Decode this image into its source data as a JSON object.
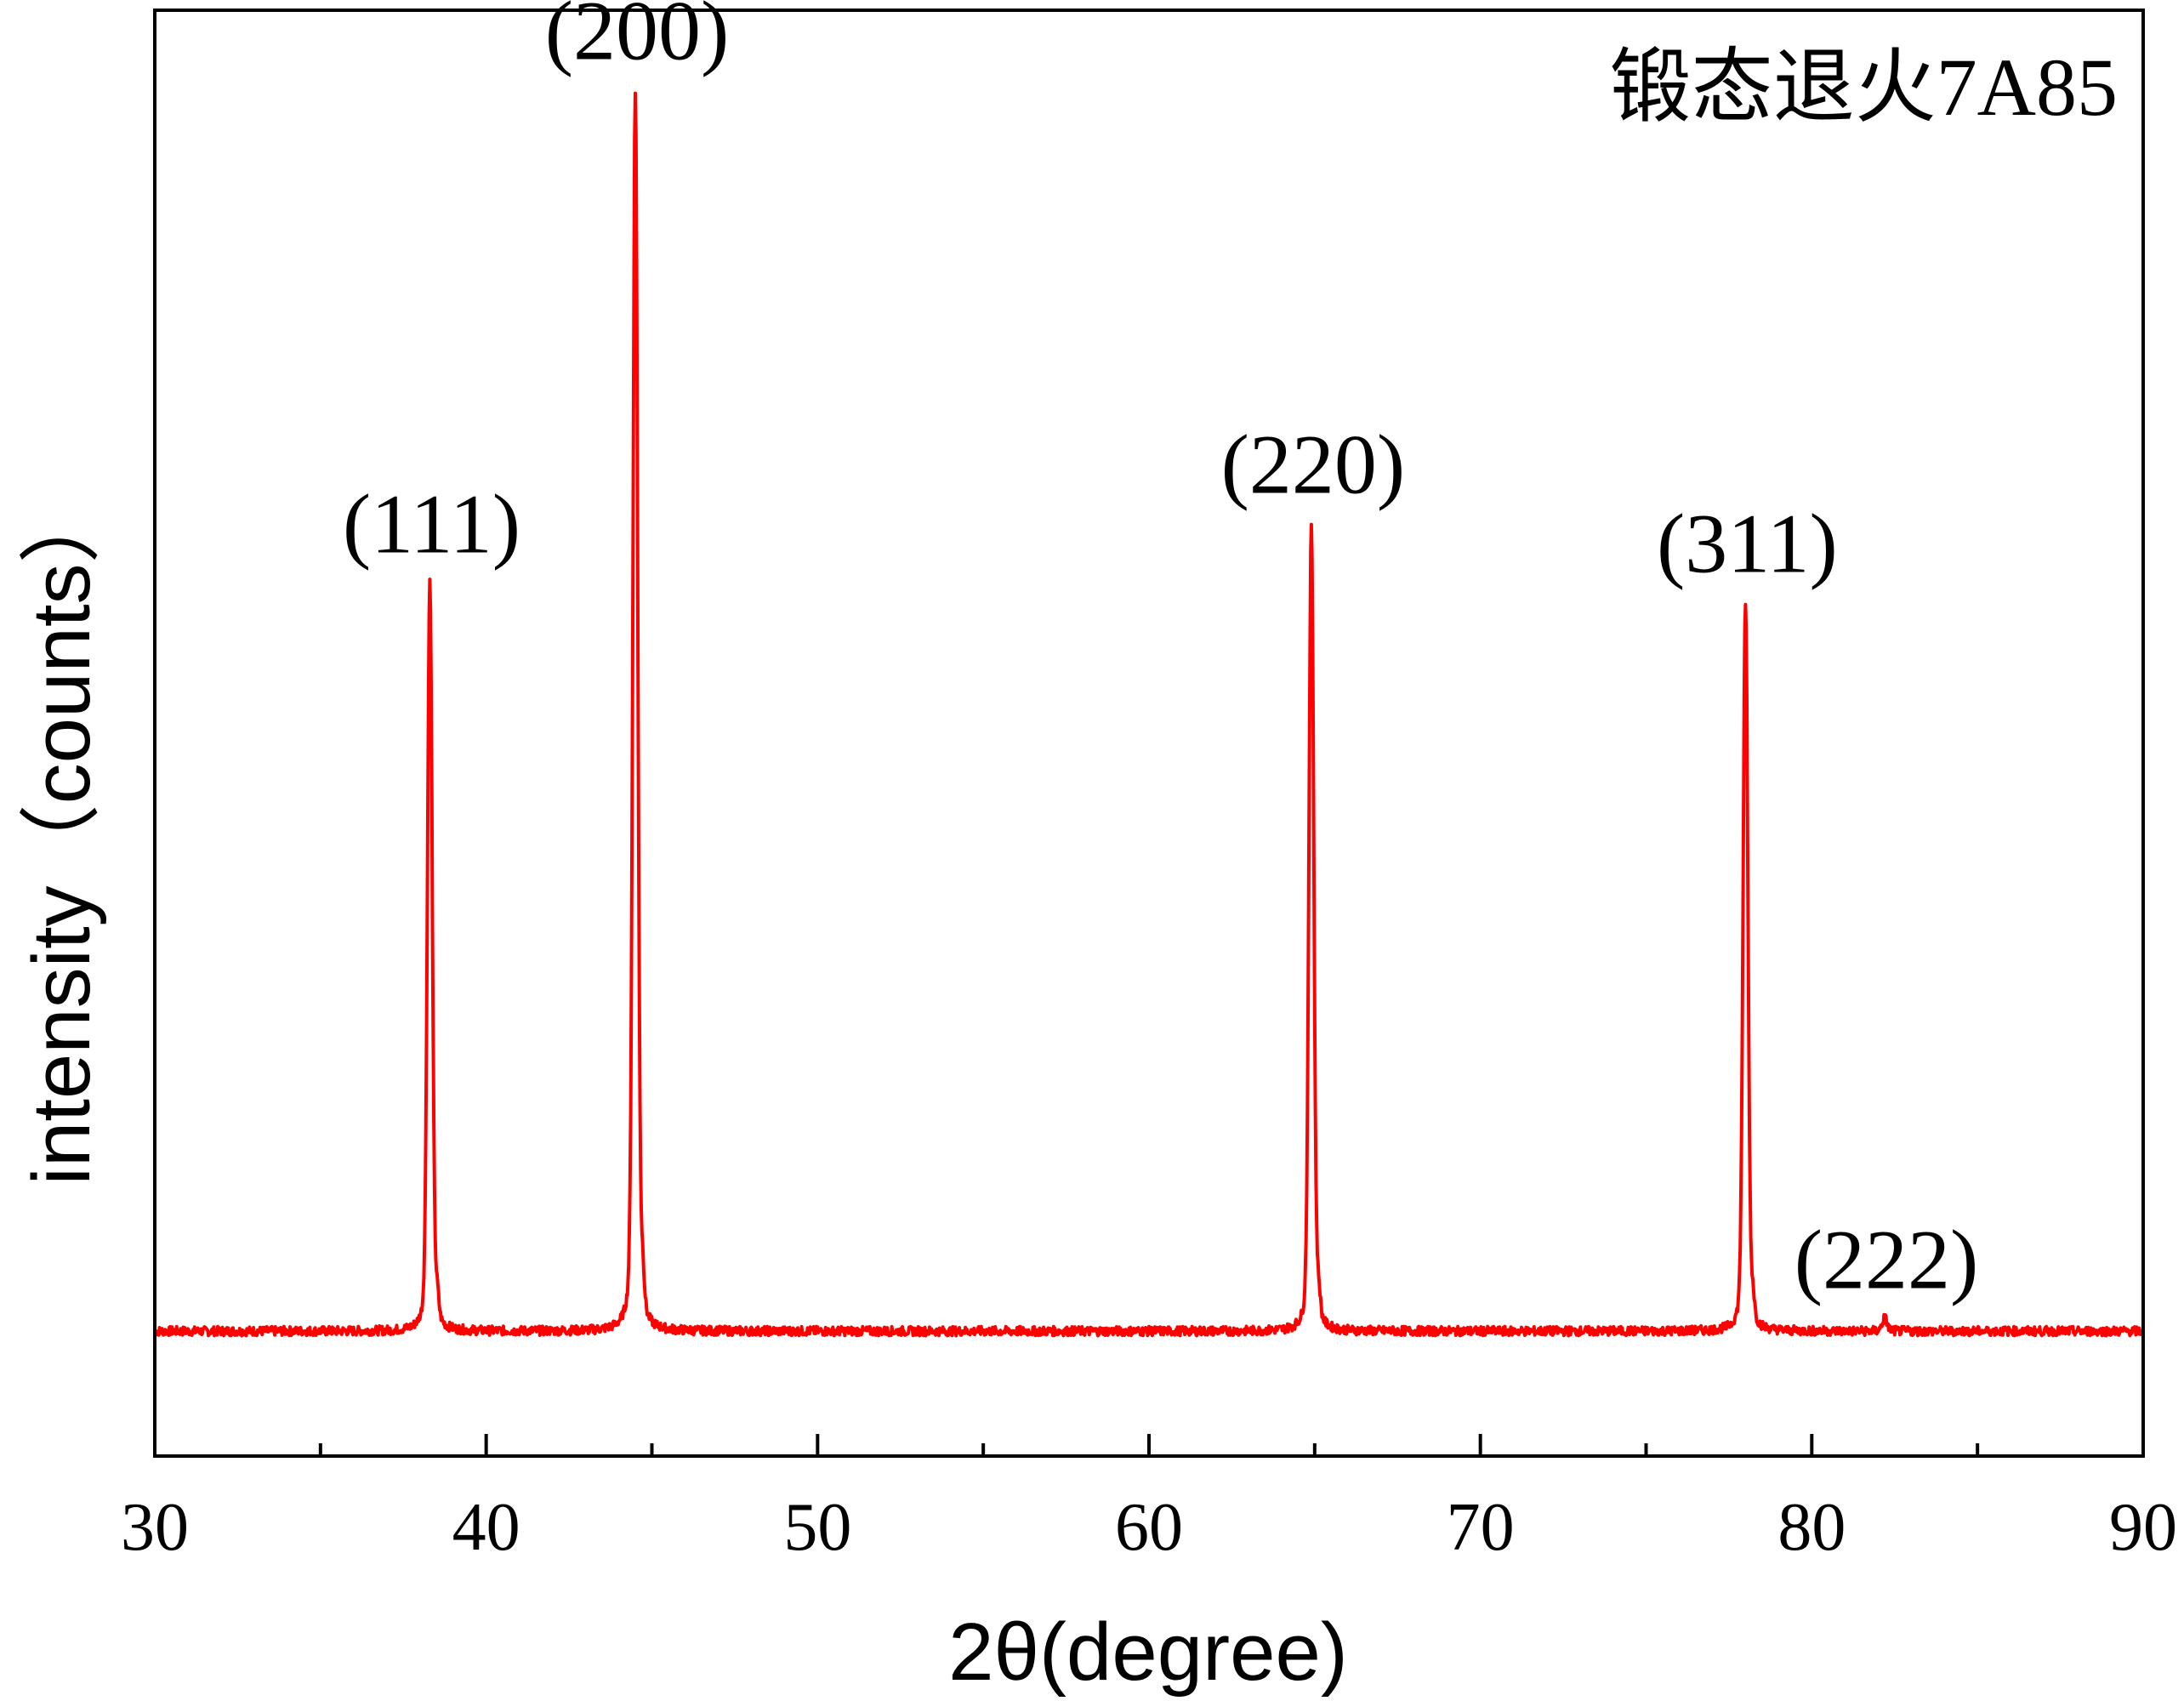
{
  "chart_data": {
    "type": "line",
    "title": "",
    "annotation_label": "锻态退火7A85",
    "xlabel": "2θ(degree)",
    "ylabel": "intensity（counts）",
    "xlim": [
      30,
      90
    ],
    "ylim": [
      0,
      1100
    ],
    "x_ticks": [
      30,
      40,
      50,
      60,
      70,
      80,
      90
    ],
    "x_tick_labels": [
      "30",
      "40",
      "50",
      "60",
      "70",
      "80",
      "90"
    ],
    "x_minor_ticks": [
      35,
      45,
      55,
      65,
      75,
      85
    ],
    "y_tick_labels_shown": false,
    "grid": false,
    "legend": "none",
    "series": [
      {
        "color": "#ff0000",
        "baseline": 95,
        "peaks": [
          {
            "x": 38.3,
            "y": 665,
            "label": "(111)"
          },
          {
            "x": 44.5,
            "y": 1040,
            "label": "(200)"
          },
          {
            "x": 64.9,
            "y": 710,
            "label": "(220)"
          },
          {
            "x": 78.0,
            "y": 650,
            "label": "(311)"
          },
          {
            "x": 82.2,
            "y": 105,
            "label": "(222)"
          }
        ]
      }
    ]
  }
}
